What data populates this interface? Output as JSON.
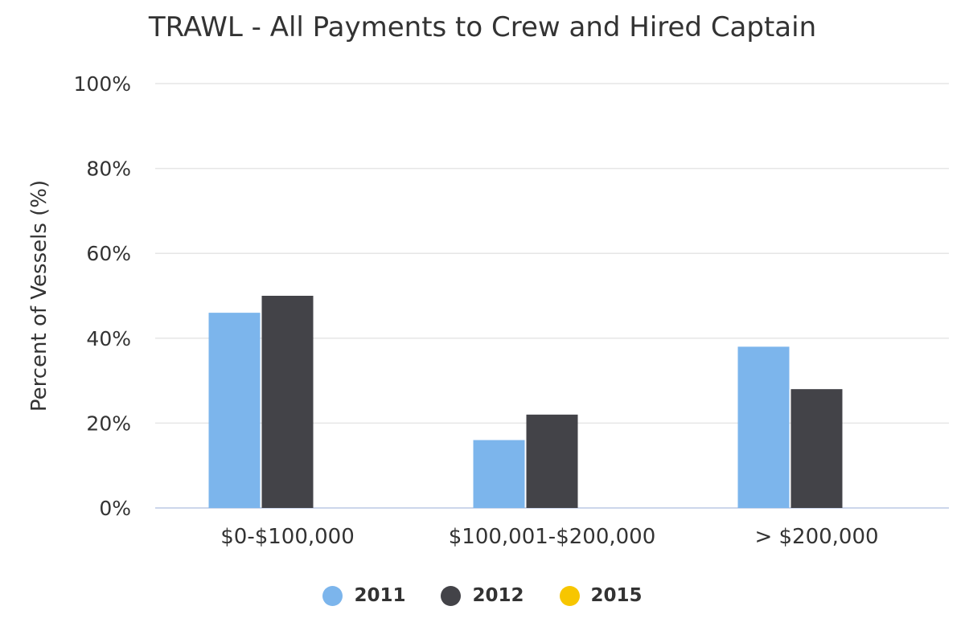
{
  "chart_data": {
    "type": "bar",
    "title": "TRAWL - All Payments to Crew and Hired Captain",
    "xlabel": "",
    "ylabel": "Percent of Vessels (%)",
    "ylim": [
      0,
      100
    ],
    "yticks": [
      "0%",
      "20%",
      "40%",
      "60%",
      "80%",
      "100%"
    ],
    "ytick_values": [
      0,
      20,
      40,
      60,
      80,
      100
    ],
    "categories": [
      "$0-$100,000",
      "$100,001-$200,000",
      "> $200,000"
    ],
    "series": [
      {
        "name": "2011",
        "color": "#7cb5ec",
        "values": [
          46,
          16,
          38
        ]
      },
      {
        "name": "2012",
        "color": "#434348",
        "values": [
          50,
          22,
          28
        ]
      },
      {
        "name": "2015",
        "color": "#f7c600",
        "values": [
          null,
          null,
          null
        ]
      }
    ],
    "grid": true,
    "legend_position": "bottom-center"
  }
}
